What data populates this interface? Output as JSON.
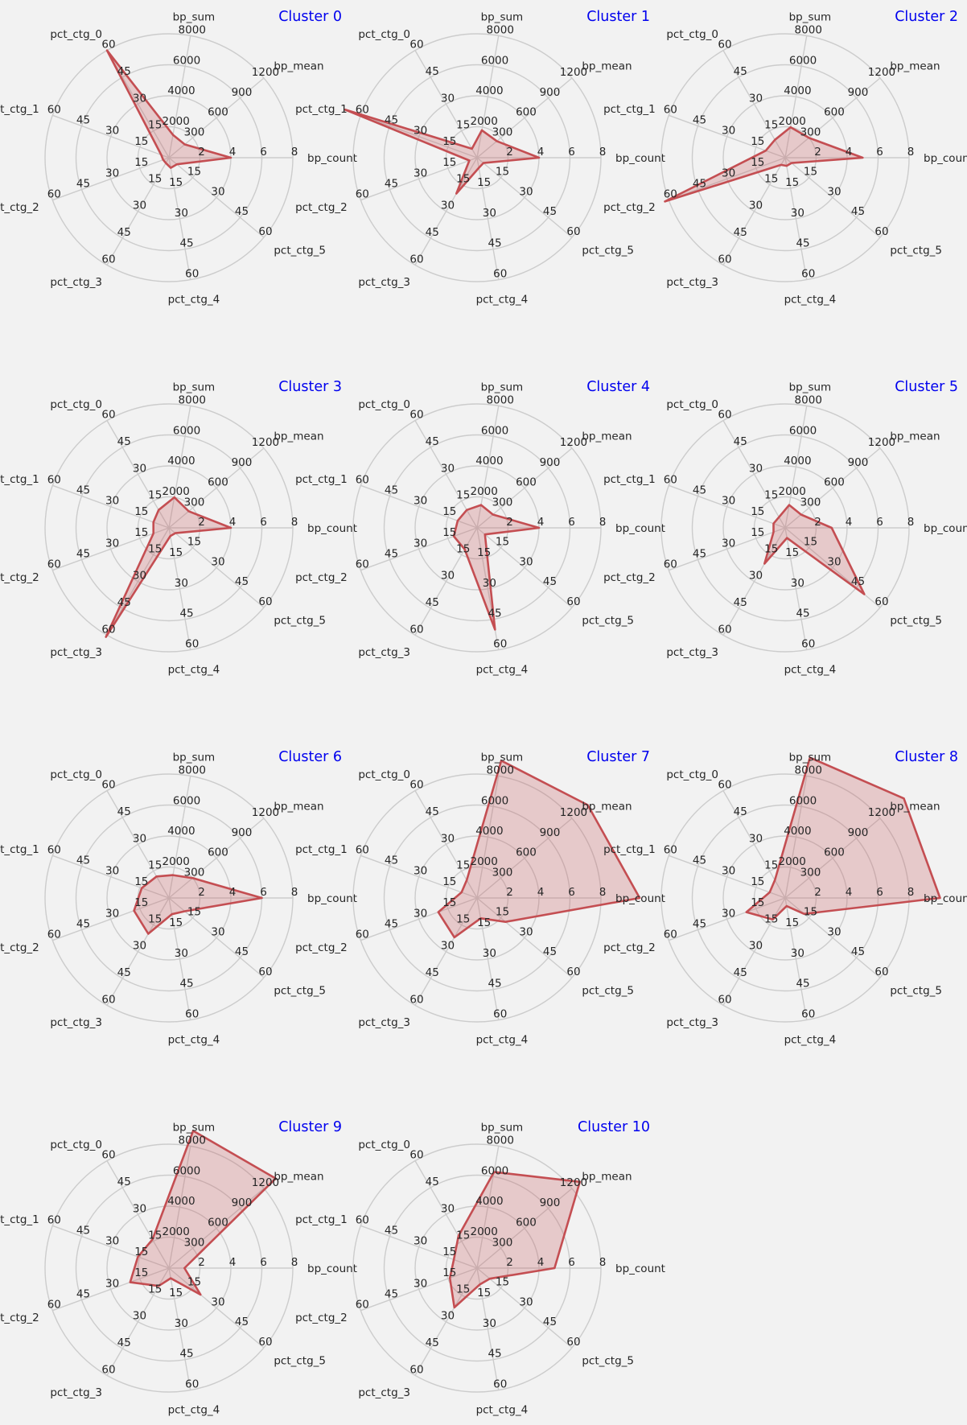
{
  "colors": {
    "background": "#f2f2f2",
    "grid": "#cccccc",
    "line": "#c44e52",
    "fill": "#c44e52",
    "title": "#0000ee",
    "text": "#262626"
  },
  "chart_data": {
    "type": "radar",
    "grid": true,
    "axes": [
      {
        "name": "bp_count",
        "ticks": [
          "2",
          "4",
          "6",
          "8"
        ],
        "max": 8
      },
      {
        "name": "bp_mean",
        "ticks": [
          "300",
          "600",
          "900",
          "1200"
        ],
        "max": 1200
      },
      {
        "name": "bp_sum",
        "ticks": [
          "2000",
          "4000",
          "6000",
          "8000"
        ],
        "max": 8000
      },
      {
        "name": "pct_ctg_0",
        "ticks": [
          "15",
          "30",
          "45",
          "60"
        ],
        "max": 60
      },
      {
        "name": "pct_ctg_1",
        "ticks": [
          "15",
          "30",
          "45",
          "60"
        ],
        "max": 60
      },
      {
        "name": "pct_ctg_2",
        "ticks": [
          "15",
          "30",
          "45",
          "60"
        ],
        "max": 60
      },
      {
        "name": "pct_ctg_3",
        "ticks": [
          "15",
          "30",
          "45",
          "60"
        ],
        "max": 60
      },
      {
        "name": "pct_ctg_4",
        "ticks": [
          "15",
          "30",
          "45",
          "60"
        ],
        "max": 60
      },
      {
        "name": "pct_ctg_5",
        "ticks": [
          "15",
          "30",
          "45",
          "60"
        ],
        "max": 60
      }
    ],
    "clusters": [
      {
        "title": "Cluster 0",
        "values": [
          4,
          200,
          1500,
          60,
          4,
          3,
          3,
          5,
          5
        ]
      },
      {
        "title": "Cluster 1",
        "values": [
          4,
          250,
          1800,
          5,
          68,
          4,
          20,
          5,
          4
        ]
      },
      {
        "title": "Cluster 2",
        "values": [
          5,
          300,
          2000,
          10,
          10,
          62,
          4,
          4,
          4
        ]
      },
      {
        "title": "Cluster 3",
        "values": [
          4,
          250,
          2000,
          10,
          8,
          8,
          61,
          4,
          4
        ]
      },
      {
        "title": "Cluster 4",
        "values": [
          4,
          200,
          1500,
          10,
          10,
          12,
          12,
          50,
          5
        ]
      },
      {
        "title": "Cluster 5",
        "values": [
          3,
          200,
          1500,
          6,
          6,
          6,
          20,
          5,
          50
        ]
      },
      {
        "title": "Cluster 6",
        "values": [
          6,
          300,
          1500,
          12,
          14,
          18,
          20,
          8,
          10
        ]
      },
      {
        "title": "Cluster 7",
        "values": [
          10.5,
          1400,
          9000,
          10,
          8,
          20,
          22,
          10,
          18
        ]
      },
      {
        "title": "Cluster 8",
        "values": [
          10,
          1500,
          9200,
          10,
          8,
          20,
          12,
          4,
          12
        ]
      },
      {
        "title": "Cluster 9",
        "values": [
          1,
          1350,
          9000,
          16,
          16,
          20,
          10,
          5,
          20
        ]
      },
      {
        "title": "Cluster 10",
        "values": [
          5,
          1300,
          6300,
          18,
          12,
          14,
          22,
          8,
          8
        ]
      }
    ]
  }
}
